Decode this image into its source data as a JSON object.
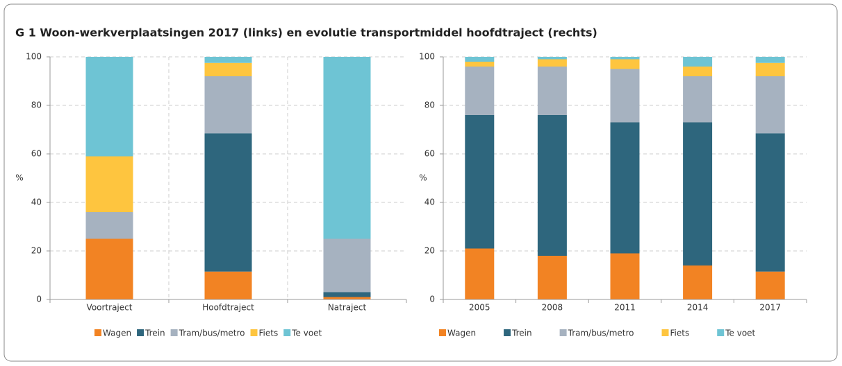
{
  "title": "G 1 Woon-werkverplaatsingen 2017 (links) en evolutie transportmiddel hoofdtraject (rechts)",
  "chart_data": [
    {
      "type": "stacked_bar",
      "ylabel": "%",
      "categories": [
        "Voortraject",
        "Hoofdtraject",
        "Natraject"
      ],
      "ylim": [
        0,
        100
      ],
      "yticks": [
        0,
        20,
        40,
        60,
        80,
        100
      ],
      "grid": true,
      "category_separators": true,
      "legend": "bottom",
      "series": [
        {
          "name": "Wagen",
          "color": "#f28323",
          "values": [
            25,
            11.5,
            1
          ]
        },
        {
          "name": "Trein",
          "color": "#2e667d",
          "values": [
            0,
            57,
            2
          ]
        },
        {
          "name": "Tram/bus/metro",
          "color": "#a6b2c0",
          "values": [
            11,
            23.5,
            22
          ]
        },
        {
          "name": "Fiets",
          "color": "#fec53f",
          "values": [
            23,
            5.5,
            0
          ]
        },
        {
          "name": "Te voet",
          "color": "#6ec4d4",
          "values": [
            41,
            2.5,
            75
          ]
        }
      ]
    },
    {
      "type": "stacked_bar",
      "ylabel": "%",
      "categories": [
        "2005",
        "2008",
        "2011",
        "2014",
        "2017"
      ],
      "ylim": [
        0,
        100
      ],
      "yticks": [
        0,
        20,
        40,
        60,
        80,
        100
      ],
      "grid": true,
      "category_separators": false,
      "legend": "bottom",
      "series": [
        {
          "name": "Wagen",
          "color": "#f28323",
          "values": [
            21,
            18,
            19,
            14,
            11.5
          ]
        },
        {
          "name": "Trein",
          "color": "#2e667d",
          "values": [
            55,
            58,
            54,
            59,
            57
          ]
        },
        {
          "name": "Tram/bus/metro",
          "color": "#a6b2c0",
          "values": [
            20,
            20,
            22,
            19,
            23.5
          ]
        },
        {
          "name": "Fiets",
          "color": "#fec53f",
          "values": [
            2,
            3,
            4,
            4,
            5.5
          ]
        },
        {
          "name": "Te voet",
          "color": "#6ec4d4",
          "values": [
            2,
            1,
            1,
            4,
            2.5
          ]
        }
      ]
    }
  ]
}
